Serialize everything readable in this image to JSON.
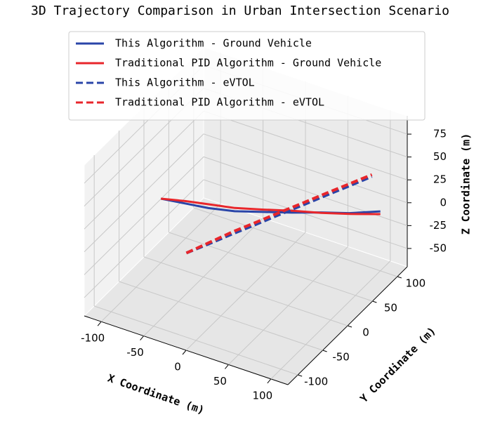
{
  "chart_data": {
    "type": "line3d",
    "title": "3D Trajectory Comparison in Urban Intersection Scenario",
    "xlabel": "X Coordinate (m)",
    "ylabel": "Y Coordinate (m)",
    "zlabel": "Z Coordinate (m)",
    "xlim": [
      -120,
      120
    ],
    "ylim": [
      -120,
      120
    ],
    "zlim": [
      -70,
      95
    ],
    "xticks": [
      -100,
      -50,
      0,
      50,
      100
    ],
    "yticks": [
      -100,
      -50,
      0,
      50,
      100
    ],
    "zticks": [
      -50,
      -25,
      0,
      25,
      50,
      75
    ],
    "grid": true,
    "legend": "upper center",
    "series": [
      {
        "name": "This Algorithm - Ground Vehicle",
        "color": "#2a45a8",
        "linestyle": "solid",
        "x": [
          -100,
          -75,
          -50,
          -25,
          0,
          25,
          50,
          75,
          100
        ],
        "y": [
          0,
          5,
          10,
          20,
          35,
          50,
          65,
          80,
          100
        ],
        "z": [
          0,
          0,
          0,
          -1,
          -2,
          -3,
          -3,
          -4,
          -5
        ]
      },
      {
        "name": "Traditional PID Algorithm - Ground Vehicle",
        "color": "#e8262b",
        "linestyle": "solid",
        "x": [
          -100,
          -75,
          -50,
          -25,
          0,
          25,
          50,
          75,
          100
        ],
        "y": [
          0,
          6,
          12,
          21,
          36,
          52,
          66,
          82,
          100
        ],
        "z": [
          0,
          2,
          3,
          2,
          0,
          -2,
          -4,
          -6,
          -8
        ]
      },
      {
        "name": "This Algorithm - eVTOL",
        "color": "#2a45a8",
        "linestyle": "dashed",
        "x": [
          -70,
          -50,
          -30,
          -10,
          10,
          30,
          50,
          70,
          90
        ],
        "y": [
          0,
          12,
          25,
          37,
          50,
          62,
          75,
          87,
          100
        ],
        "z": [
          -50,
          -40,
          -30,
          -20,
          -10,
          0,
          10,
          20,
          30
        ]
      },
      {
        "name": "Traditional PID Algorithm - eVTOL",
        "color": "#e8262b",
        "linestyle": "dashed",
        "x": [
          -70,
          -50,
          -30,
          -10,
          10,
          30,
          50,
          70,
          90
        ],
        "y": [
          0,
          13,
          26,
          38,
          51,
          63,
          76,
          88,
          100
        ],
        "z": [
          -50,
          -39,
          -28,
          -18,
          -8,
          2,
          12,
          22,
          32
        ]
      }
    ]
  }
}
